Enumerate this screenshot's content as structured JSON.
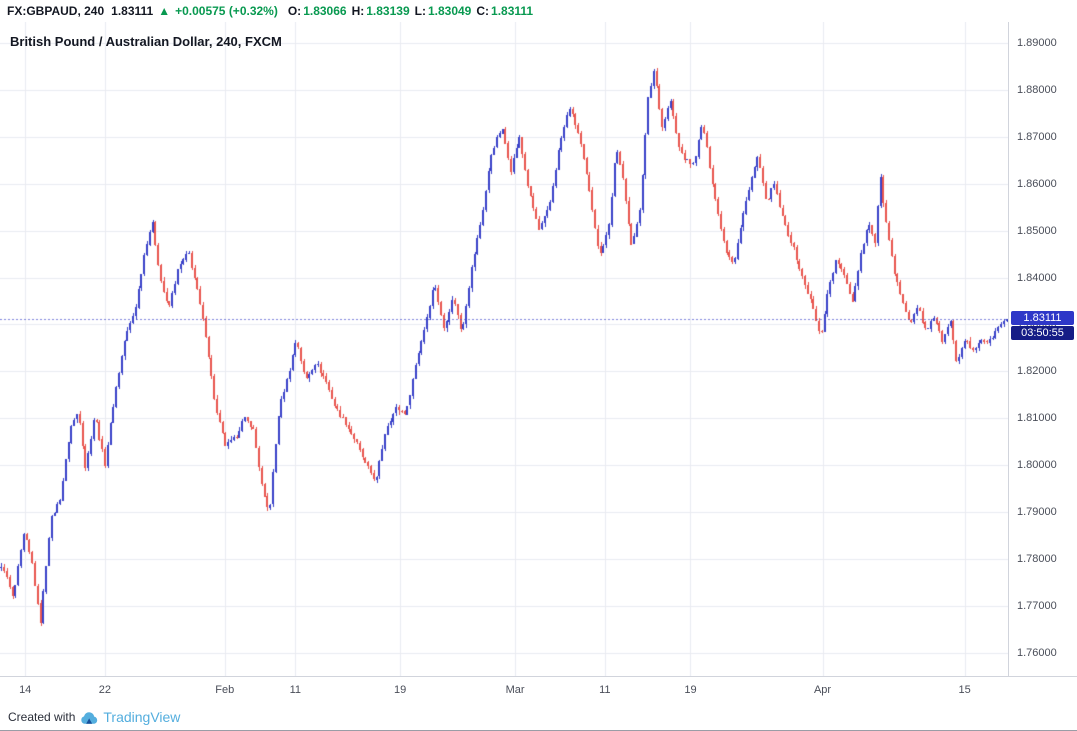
{
  "header": {
    "symbol": "FX:GBPAUD, 240",
    "last_price": "1.83111",
    "change_arrow": "▲",
    "change": "+0.00575 (+0.32%)",
    "ohlc": [
      {
        "label": "O:",
        "value": "1.83066"
      },
      {
        "label": "H:",
        "value": "1.83139"
      },
      {
        "label": "L:",
        "value": "1.83049"
      },
      {
        "label": "C:",
        "value": "1.83111"
      }
    ]
  },
  "chart": {
    "title": "British Pound / Australian Dollar, 240, FXCM"
  },
  "price_axis": {
    "ticks": [
      {
        "label": "1.89000",
        "price": 1.89
      },
      {
        "label": "1.88000",
        "price": 1.88
      },
      {
        "label": "1.87000",
        "price": 1.87
      },
      {
        "label": "1.86000",
        "price": 1.86
      },
      {
        "label": "1.85000",
        "price": 1.85
      },
      {
        "label": "1.84000",
        "price": 1.84
      },
      {
        "label": "1.83000",
        "price": 1.83
      },
      {
        "label": "1.82000",
        "price": 1.82
      },
      {
        "label": "1.81000",
        "price": 1.81
      },
      {
        "label": "1.80000",
        "price": 1.8
      },
      {
        "label": "1.79000",
        "price": 1.79
      },
      {
        "label": "1.78000",
        "price": 1.78
      },
      {
        "label": "1.77000",
        "price": 1.77
      },
      {
        "label": "1.76000",
        "price": 1.76
      }
    ],
    "badge": {
      "price": "1.83111",
      "countdown": "03:50:55"
    }
  },
  "time_axis": {
    "ticks": [
      {
        "label": "14",
        "t": 0.025
      },
      {
        "label": "22",
        "t": 0.104
      },
      {
        "label": "Feb",
        "t": 0.223
      },
      {
        "label": "11",
        "t": 0.293
      },
      {
        "label": "19",
        "t": 0.397
      },
      {
        "label": "Mar",
        "t": 0.511
      },
      {
        "label": "11",
        "t": 0.6
      },
      {
        "label": "19",
        "t": 0.685
      },
      {
        "label": "Apr",
        "t": 0.816
      },
      {
        "label": "15",
        "t": 0.957
      }
    ]
  },
  "footer": {
    "created_with": "Created with",
    "brand": "TradingView"
  },
  "chart_data": {
    "type": "candlestick",
    "symbol": "FX:GBPAUD",
    "interval": "240",
    "exchange": "FXCM",
    "title": "British Pound / Australian Dollar, 240, FXCM",
    "last_price": 1.83111,
    "countdown": "03:50:55",
    "y_range": {
      "min": 1.755,
      "max": 1.8945
    },
    "up_color": "#3841c8",
    "down_color": "#e8544e",
    "grid_color": "#e9ebf2",
    "badge_bg": "#2e37c8",
    "countdown_bg": "#151c86",
    "bar_count": 360,
    "price_path": [
      [
        0.004,
        1.778
      ],
      [
        0.013,
        1.7715
      ],
      [
        0.024,
        1.7855
      ],
      [
        0.032,
        1.779
      ],
      [
        0.04,
        1.766
      ],
      [
        0.05,
        1.788
      ],
      [
        0.06,
        1.793
      ],
      [
        0.07,
        1.808
      ],
      [
        0.078,
        1.8115
      ],
      [
        0.085,
        1.799
      ],
      [
        0.094,
        1.811
      ],
      [
        0.104,
        1.8
      ],
      [
        0.114,
        1.815
      ],
      [
        0.124,
        1.827
      ],
      [
        0.134,
        1.833
      ],
      [
        0.144,
        1.846
      ],
      [
        0.151,
        1.852
      ],
      [
        0.159,
        1.84
      ],
      [
        0.167,
        1.833
      ],
      [
        0.177,
        1.842
      ],
      [
        0.187,
        1.8455
      ],
      [
        0.195,
        1.838
      ],
      [
        0.204,
        1.828
      ],
      [
        0.214,
        1.812
      ],
      [
        0.224,
        1.804
      ],
      [
        0.234,
        1.806
      ],
      [
        0.242,
        1.81
      ],
      [
        0.251,
        1.808
      ],
      [
        0.261,
        1.794
      ],
      [
        0.267,
        1.7895
      ],
      [
        0.277,
        1.812
      ],
      [
        0.287,
        1.82
      ],
      [
        0.294,
        1.827
      ],
      [
        0.303,
        1.818
      ],
      [
        0.313,
        1.822
      ],
      [
        0.323,
        1.818
      ],
      [
        0.333,
        1.812
      ],
      [
        0.343,
        1.809
      ],
      [
        0.353,
        1.805
      ],
      [
        0.363,
        1.8
      ],
      [
        0.373,
        1.7965
      ],
      [
        0.383,
        1.808
      ],
      [
        0.393,
        1.812
      ],
      [
        0.403,
        1.811
      ],
      [
        0.413,
        1.822
      ],
      [
        0.423,
        1.831
      ],
      [
        0.431,
        1.839
      ],
      [
        0.44,
        1.829
      ],
      [
        0.45,
        1.836
      ],
      [
        0.458,
        1.828
      ],
      [
        0.468,
        1.842
      ],
      [
        0.478,
        1.853
      ],
      [
        0.488,
        1.867
      ],
      [
        0.498,
        1.872
      ],
      [
        0.507,
        1.863
      ],
      [
        0.515,
        1.87
      ],
      [
        0.525,
        1.858
      ],
      [
        0.535,
        1.85
      ],
      [
        0.545,
        1.855
      ],
      [
        0.555,
        1.868
      ],
      [
        0.565,
        1.8765
      ],
      [
        0.575,
        1.87
      ],
      [
        0.585,
        1.858
      ],
      [
        0.595,
        1.8445
      ],
      [
        0.605,
        1.852
      ],
      [
        0.611,
        1.868
      ],
      [
        0.619,
        1.86
      ],
      [
        0.627,
        1.846
      ],
      [
        0.635,
        1.855
      ],
      [
        0.643,
        1.878
      ],
      [
        0.649,
        1.8845
      ],
      [
        0.657,
        1.872
      ],
      [
        0.665,
        1.878
      ],
      [
        0.673,
        1.868
      ],
      [
        0.68,
        1.865
      ],
      [
        0.688,
        1.864
      ],
      [
        0.697,
        1.873
      ],
      [
        0.704,
        1.864
      ],
      [
        0.712,
        1.854
      ],
      [
        0.72,
        1.846
      ],
      [
        0.728,
        1.843
      ],
      [
        0.736,
        1.852
      ],
      [
        0.744,
        1.86
      ],
      [
        0.752,
        1.866
      ],
      [
        0.76,
        1.856
      ],
      [
        0.768,
        1.86
      ],
      [
        0.776,
        1.853
      ],
      [
        0.786,
        1.847
      ],
      [
        0.796,
        1.84
      ],
      [
        0.806,
        1.834
      ],
      [
        0.814,
        1.827
      ],
      [
        0.822,
        1.838
      ],
      [
        0.83,
        1.844
      ],
      [
        0.838,
        1.84
      ],
      [
        0.846,
        1.835
      ],
      [
        0.854,
        1.845
      ],
      [
        0.862,
        1.852
      ],
      [
        0.868,
        1.847
      ],
      [
        0.873,
        1.862
      ],
      [
        0.88,
        1.85
      ],
      [
        0.888,
        1.84
      ],
      [
        0.896,
        1.835
      ],
      [
        0.903,
        1.83
      ],
      [
        0.911,
        1.834
      ],
      [
        0.919,
        1.828
      ],
      [
        0.927,
        1.832
      ],
      [
        0.935,
        1.826
      ],
      [
        0.943,
        1.831
      ],
      [
        0.949,
        1.822
      ],
      [
        0.957,
        1.827
      ],
      [
        0.965,
        1.824
      ],
      [
        0.973,
        1.827
      ],
      [
        0.981,
        1.826
      ],
      [
        0.989,
        1.829
      ],
      [
        0.997,
        1.8311
      ]
    ]
  }
}
